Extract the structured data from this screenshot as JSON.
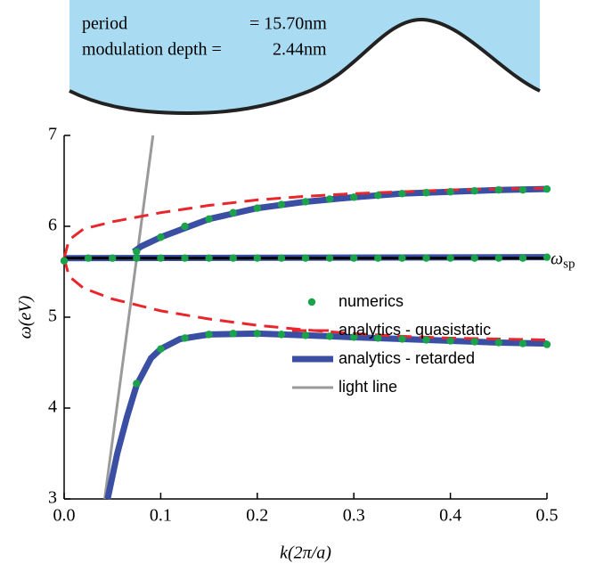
{
  "inset": {
    "period_label": "period",
    "period_value": "= 15.70nm",
    "depth_label": "modulation depth =",
    "depth_value": "2.44nm"
  },
  "chart_data": {
    "type": "line",
    "x_label": "k(2π/a)",
    "y_label": "ω(eV)",
    "xlim": [
      0,
      0.5
    ],
    "ylim": [
      3,
      7
    ],
    "xticks": [
      {
        "value": 0,
        "label": "0.0"
      },
      0.1,
      0.2,
      0.3,
      0.4,
      0.5
    ],
    "yticks": [
      3,
      4,
      5,
      6,
      7
    ],
    "legend": "lower right",
    "reference_line": {
      "value": 5.65,
      "label": "ω",
      "label_sub": "sp",
      "color": "#000000"
    },
    "series": [
      {
        "name": "numerics",
        "color": "#1aa34a",
        "style": "markers",
        "x": [
          0,
          0.025,
          0.05,
          0.075,
          0.1,
          0.125,
          0.15,
          0.175,
          0.2,
          0.225,
          0.25,
          0.275,
          0.3,
          0.325,
          0.35,
          0.375,
          0.4,
          0.425,
          0.45,
          0.475,
          0.5,
          0.075,
          0.1,
          0.125,
          0.15,
          0.175,
          0.2,
          0.225,
          0.25,
          0.275,
          0.3,
          0.325,
          0.35,
          0.375,
          0.4,
          0.425,
          0.45,
          0.475,
          0.5,
          0.075,
          0.1,
          0.125,
          0.15,
          0.175,
          0.2,
          0.225,
          0.25,
          0.275,
          0.3,
          0.325,
          0.35,
          0.375,
          0.4,
          0.425,
          0.45,
          0.475,
          0.5
        ],
        "values": [
          5.62,
          5.65,
          5.65,
          5.65,
          5.65,
          5.65,
          5.65,
          5.65,
          5.65,
          5.65,
          5.65,
          5.65,
          5.65,
          5.65,
          5.65,
          5.65,
          5.65,
          5.65,
          5.65,
          5.65,
          5.66,
          4.27,
          4.65,
          4.77,
          4.81,
          4.82,
          4.82,
          4.81,
          4.8,
          4.79,
          4.78,
          4.77,
          4.76,
          4.75,
          4.74,
          4.73,
          4.72,
          4.71,
          4.7,
          5.72,
          5.88,
          6.0,
          6.08,
          6.15,
          6.2,
          6.24,
          6.27,
          6.3,
          6.32,
          6.34,
          6.36,
          6.37,
          6.38,
          6.39,
          6.4,
          6.4,
          6.41
        ]
      },
      {
        "name": "analytics - quasistatic",
        "color": "#e8262b",
        "style": "dashed",
        "x": [
          0,
          0.005,
          0.02,
          0.05,
          0.1,
          0.15,
          0.2,
          0.25,
          0.3,
          0.35,
          0.4,
          0.45,
          0.5,
          null,
          0,
          0.005,
          0.02,
          0.05,
          0.1,
          0.15,
          0.2,
          0.25,
          0.3,
          0.35,
          0.4,
          0.45,
          0.5
        ],
        "values": [
          5.65,
          5.85,
          5.97,
          6.05,
          6.15,
          6.23,
          6.29,
          6.33,
          6.36,
          6.38,
          6.4,
          6.41,
          6.42,
          null,
          5.65,
          5.45,
          5.32,
          5.2,
          5.07,
          4.98,
          4.91,
          4.86,
          4.82,
          4.79,
          4.77,
          4.76,
          4.75
        ]
      },
      {
        "name": "analytics - retarded",
        "color": "#3a4fa3",
        "style": "thick",
        "x": [
          0.045,
          0.055,
          0.065,
          0.075,
          0.09,
          0.1,
          0.12,
          0.15,
          0.2,
          0.25,
          0.3,
          0.35,
          0.4,
          0.45,
          0.5,
          null,
          0,
          0.5,
          null,
          0.072,
          0.08,
          0.1,
          0.15,
          0.2,
          0.25,
          0.3,
          0.35,
          0.4,
          0.45,
          0.5
        ],
        "values": [
          3.0,
          3.5,
          3.9,
          4.25,
          4.55,
          4.65,
          4.76,
          4.81,
          4.82,
          4.8,
          4.78,
          4.76,
          4.74,
          4.72,
          4.71,
          null,
          5.65,
          5.66,
          null,
          5.72,
          5.78,
          5.88,
          6.08,
          6.2,
          6.27,
          6.32,
          6.36,
          6.38,
          6.4,
          6.41
        ]
      },
      {
        "name": "light line",
        "color": "#9a9a9a",
        "style": "thin",
        "x": [
          0.042,
          0.092
        ],
        "values": [
          3.0,
          7.0
        ]
      }
    ]
  }
}
